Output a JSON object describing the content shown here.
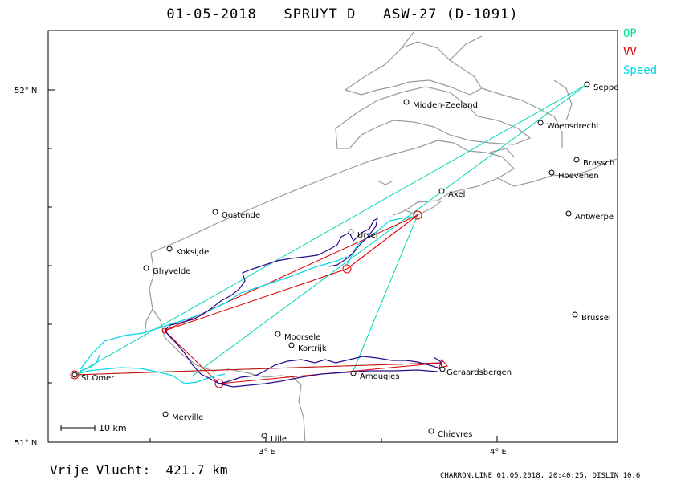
{
  "header": {
    "title": "01-05-2018   SPRUYT D   ASW-27 (D-1091)"
  },
  "legend": {
    "op": "OP",
    "vv": "VV",
    "speed": "Speed",
    "colors": {
      "op": "#00e08a",
      "vv": "#e00000",
      "speed": "#00d8e8",
      "track": "#2a0a8a"
    }
  },
  "axes": {
    "lat_north": "52° N",
    "lat_south": "51° N",
    "lon_3": "3° E",
    "lon_4": "4° E"
  },
  "scale": {
    "label": "10 km"
  },
  "places": {
    "middenzeeland": "Midden-Zeeland",
    "woensdrecht": "Woensdrecht",
    "seppe": "Seppe",
    "brasschaat": "Brassch",
    "hoevenen": "Hoevenen",
    "axel": "Axel",
    "antwerpen": "Antwerpe",
    "oostende": "Oostende",
    "ursel": "Ursel",
    "koksijde": "Koksijde",
    "ghyvelde": "Ghyvelde",
    "brussel": "Brussel",
    "moorsele": "Moorsele",
    "kortrijk": "Kortrijk",
    "geraardsbergen": "Geraardsbergen",
    "amougies": "Amougies",
    "stomer": "St.Omer",
    "merville": "Merville",
    "lille": "Lille",
    "chievres": "Chievres"
  },
  "footer": {
    "distance": "Vrije Vlucht:  421.7 km",
    "credit": "CHARRON.LINE 01.05.2018, 20:40:25, DISLIN 10.6"
  }
}
